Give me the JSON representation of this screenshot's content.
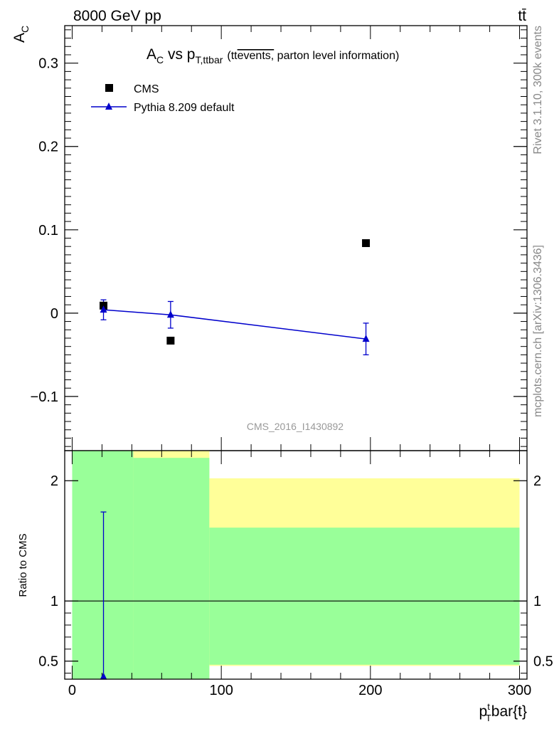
{
  "header": {
    "energy_label": "8000 GeV pp",
    "process_label": "tt̄"
  },
  "side_labels": {
    "rivet": "Rivet 3.1.10,  300k events",
    "mcplots": "mcplots.cern.ch [arXiv:1306.3436]"
  },
  "chart_data": [
    {
      "type": "scatter",
      "title_main": "A",
      "title_main_sub": "C",
      "title_vs": " vs p",
      "title_vs_sub": "T,ttbar",
      "title_note_open": "(tt",
      "title_note_overline": "events,",
      "title_note_rest": " parton level information)",
      "ylabel": "A",
      "ylabel_sub": "C",
      "watermark": "CMS_2016_I1430892",
      "xlim": [
        -5,
        305
      ],
      "ylim": [
        -0.165,
        0.345
      ],
      "yticks": [
        {
          "v": -0.1,
          "label": "−0.1"
        },
        {
          "v": 0,
          "label": "0"
        },
        {
          "v": 0.1,
          "label": "0.1"
        },
        {
          "v": 0.2,
          "label": "0.2"
        },
        {
          "v": 0.3,
          "label": "0.3"
        }
      ],
      "legend_position": "top-left",
      "series": [
        {
          "name": "CMS",
          "marker": "square",
          "color": "#000000",
          "points": [
            {
              "x": 21,
              "y": 0.009
            },
            {
              "x": 66,
              "y": -0.033
            },
            {
              "x": 197,
              "y": 0.084
            }
          ]
        },
        {
          "name": "Pythia 8.209 default",
          "marker": "triangle",
          "color": "#0000cc",
          "points": [
            {
              "x": 21,
              "y": 0.004,
              "err": 0.012
            },
            {
              "x": 66,
              "y": -0.002,
              "err": 0.016
            },
            {
              "x": 197,
              "y": -0.031,
              "err": 0.019
            }
          ]
        }
      ]
    },
    {
      "type": "ratio",
      "ylabel": "Ratio to CMS",
      "xlabel_p": "p",
      "xlabel_sup": "t",
      "xlabel_sub": "T",
      "xlabel_rest": "bar{t}",
      "xlim": [
        -5,
        305
      ],
      "ylim": [
        0.35,
        2.25
      ],
      "xticks": [
        {
          "v": 0,
          "label": "0"
        },
        {
          "v": 100,
          "label": "100"
        },
        {
          "v": 200,
          "label": "200"
        },
        {
          "v": 300,
          "label": "300"
        }
      ],
      "yticks": [
        {
          "v": 0.5,
          "label": "0.5"
        },
        {
          "v": 1,
          "label": "1"
        },
        {
          "v": 2,
          "label": "2"
        }
      ],
      "bands": [
        {
          "x0": 0,
          "x1": 41,
          "yellow": [
            0.35,
            2.25
          ],
          "green": [
            0.35,
            2.25
          ]
        },
        {
          "x0": 41,
          "x1": 92,
          "yellow": [
            0.35,
            2.25
          ],
          "green": [
            0.35,
            2.19
          ]
        },
        {
          "x0": 92,
          "x1": 300,
          "yellow": [
            0.46,
            2.02
          ],
          "green": [
            0.47,
            1.61
          ]
        }
      ],
      "green_color": "#99ff99",
      "yellow_color": "#ffff99",
      "reference_line": 1,
      "points": [
        {
          "x": 21,
          "y": 0.37,
          "err_up": 1.37
        }
      ]
    }
  ]
}
